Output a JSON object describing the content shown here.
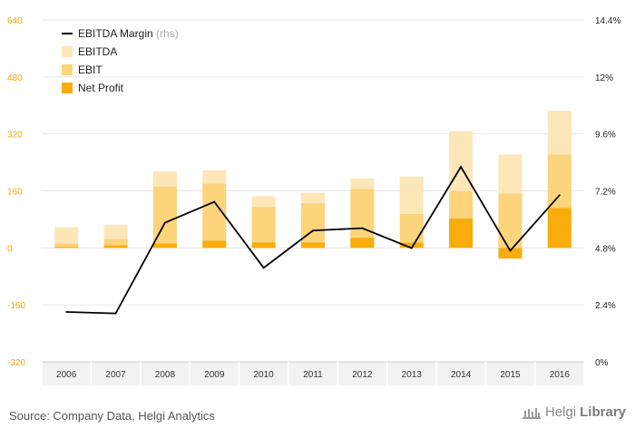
{
  "chart_data": {
    "type": "bar",
    "categories": [
      "2006",
      "2007",
      "2008",
      "2009",
      "2010",
      "2011",
      "2012",
      "2013",
      "2014",
      "2015",
      "2016"
    ],
    "series": [
      {
        "name": "EBITDA",
        "kind": "bar",
        "color": "#fde6b8",
        "values": [
          58,
          65,
          215,
          218,
          145,
          155,
          195,
          200,
          328,
          262,
          385
        ]
      },
      {
        "name": "EBIT",
        "kind": "bar",
        "color": "#fcd47c",
        "values": [
          12,
          25,
          172,
          180,
          115,
          125,
          165,
          95,
          160,
          152,
          262
        ]
      },
      {
        "name": "Net Profit",
        "kind": "bar",
        "color": "#f8ad0c",
        "values": [
          3,
          7,
          12,
          20,
          15,
          15,
          28,
          15,
          82,
          -30,
          112
        ]
      },
      {
        "name": "EBITDA Margin",
        "name_suffix": "(rhs)",
        "kind": "line",
        "axis": "right",
        "color": "#000000",
        "values": [
          2.1,
          2.04,
          5.86,
          6.74,
          3.96,
          5.53,
          5.63,
          4.79,
          8.21,
          4.68,
          7.02
        ]
      }
    ],
    "y_left": {
      "min": -320,
      "max": 640,
      "ticks": [
        -320,
        -160,
        0,
        160,
        320,
        480,
        640
      ],
      "tick_color": "#f5a800"
    },
    "y_right": {
      "min": 0,
      "max": 14.4,
      "ticks": [
        0,
        2.4,
        4.8,
        7.2,
        9.6,
        12,
        14.4
      ],
      "unit": "%",
      "tick_labels": [
        "0%",
        "2.4%",
        "4.8%",
        "7.2%",
        "9.6%",
        "12%",
        "14.4%"
      ]
    },
    "grid": true,
    "legend_position": "top-left",
    "title": "",
    "xlabel": "",
    "ylabel": ""
  },
  "footer": {
    "source": "Source: Company Data, Helgi Analytics",
    "brand_part1": "Helgi",
    "brand_part2": "Library"
  }
}
